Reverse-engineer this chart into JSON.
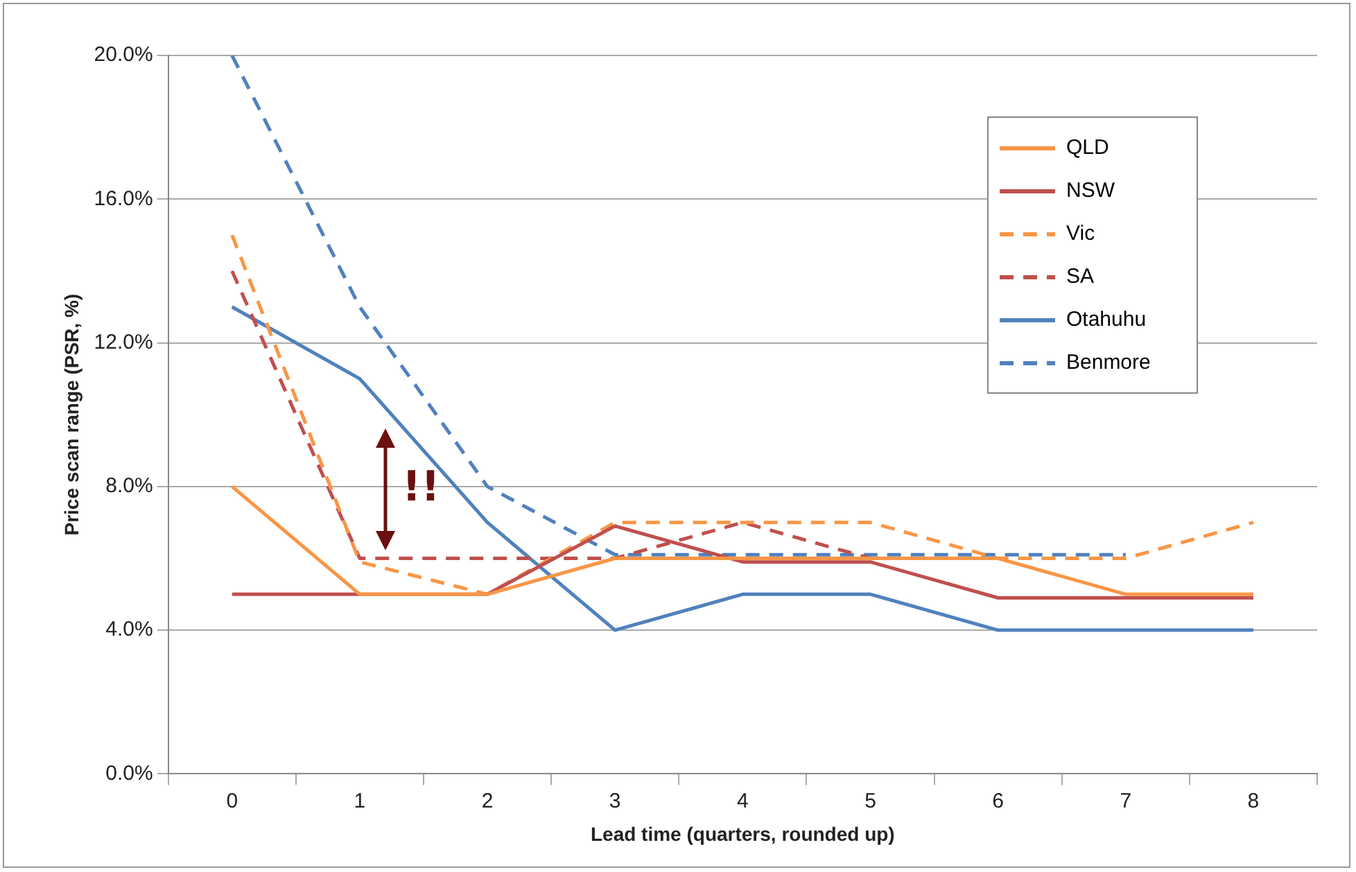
{
  "chart_data": {
    "type": "line",
    "xlabel": "Lead time (quarters, rounded up)",
    "ylabel": "Price scan range (PSR, %)",
    "categories": [
      "0",
      "1",
      "2",
      "3",
      "4",
      "5",
      "6",
      "7",
      "8"
    ],
    "series": [
      {
        "name": "QLD",
        "color": "#f79646",
        "line_style": "solid",
        "values": [
          8,
          5,
          5,
          6,
          6,
          6,
          6,
          5,
          5
        ]
      },
      {
        "name": "NSW",
        "color": "#c0504d",
        "line_style": "solid",
        "values": [
          5,
          5,
          5,
          6.9,
          5.9,
          5.9,
          4.9,
          4.9,
          4.9
        ]
      },
      {
        "name": "Vic",
        "color": "#f79646",
        "line_style": "dashed",
        "values": [
          15,
          5.9,
          5,
          7,
          7,
          7,
          6,
          6,
          7
        ]
      },
      {
        "name": "SA",
        "color": "#c0504d",
        "line_style": "dashed",
        "values": [
          14,
          6,
          6,
          6,
          7,
          6,
          null,
          null,
          null
        ]
      },
      {
        "name": "Otahuhu",
        "color": "#4f81bd",
        "line_style": "solid",
        "values": [
          13,
          11,
          7,
          4,
          5,
          5,
          4,
          4,
          4
        ]
      },
      {
        "name": "Benmore",
        "color": "#4f81bd",
        "line_style": "dashed",
        "values": [
          20,
          13,
          8,
          6.1,
          6.1,
          6.1,
          6.1,
          6.1,
          null
        ]
      }
    ],
    "ylim": [
      0,
      20
    ],
    "yticks": [
      {
        "value": 0,
        "label": "0.0%"
      },
      {
        "value": 4,
        "label": "4.0%"
      },
      {
        "value": 8,
        "label": "8.0%"
      },
      {
        "value": 12,
        "label": "12.0%"
      },
      {
        "value": 16,
        "label": "16.0%"
      },
      {
        "value": 20,
        "label": "20.0%"
      }
    ],
    "grid": "y",
    "legend": "top right",
    "marker": "none",
    "annotations": [
      "!!"
    ]
  }
}
